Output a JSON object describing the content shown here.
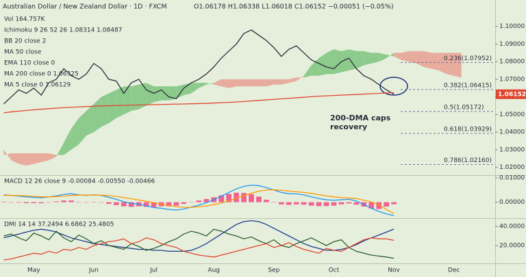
{
  "chart_data": [
    {
      "type": "line",
      "title": "Australian Dollar / New Zealand Dollar · 1D · FXCM",
      "ohlc": "O1.06178 H1.06338 L1.06018 C1.06152 −0.00051 (−0.05%)",
      "legend_lines": [
        "Vol 164.757K",
        "Ichimoku 9 26 52 26 1.08314 1.08487",
        "BB 20 close 2",
        "MA 50 close",
        "EMA 110 close 0",
        "MA 200 close 0 1.06325",
        "MA 5 close 0 1.06129"
      ],
      "ylim": [
        1.0156,
        1.1088
      ],
      "yticks": [
        {
          "value": 1.1,
          "label": "1.10000"
        },
        {
          "value": 1.09,
          "label": "1.09000"
        },
        {
          "value": 1.08,
          "label": "1.08000"
        },
        {
          "value": 1.07,
          "label": "1.07000"
        },
        {
          "value": 1.06,
          "label": "1.06000"
        },
        {
          "value": 1.05,
          "label": "1.05000"
        },
        {
          "value": 1.04,
          "label": "1.04000"
        },
        {
          "value": 1.03,
          "label": "1.03000"
        },
        {
          "value": 1.02,
          "label": "1.02000"
        }
      ],
      "series": [
        {
          "color": "#2a2e39",
          "style": "line",
          "values": [
            1.056,
            1.06,
            1.064,
            1.062,
            1.065,
            1.061,
            1.068,
            1.07,
            1.076,
            1.072,
            1.07,
            1.073,
            1.079,
            1.076,
            1.07,
            1.069,
            1.062,
            1.068,
            1.07,
            1.064,
            1.062,
            1.064,
            1.06,
            1.059,
            1.065,
            1.068,
            1.07,
            1.073,
            1.077,
            1.082,
            1.086,
            1.09,
            1.096,
            1.098,
            1.095,
            1.092,
            1.088,
            1.083,
            1.087,
            1.089,
            1.085,
            1.081,
            1.079,
            1.077,
            1.076,
            1.08,
            1.082,
            1.076,
            1.072,
            1.07,
            1.067,
            1.064,
            1.0615,
            null,
            null,
            null,
            null,
            null,
            null,
            null,
            null,
            null,
            null,
            null,
            null,
            null
          ]
        },
        {
          "color": "#e0452f",
          "style": "line",
          "values": [
            1.051,
            1.0515,
            1.0519,
            1.0523,
            1.0527,
            1.053,
            1.0533,
            1.0536,
            1.0539,
            1.0541,
            1.0543,
            1.0545,
            1.0547,
            1.0549,
            1.055,
            1.0551,
            1.0552,
            1.0553,
            1.0554,
            1.0555,
            1.0556,
            1.0557,
            1.0558,
            1.0559,
            1.056,
            1.0561,
            1.0562,
            1.0563,
            1.0565,
            1.0567,
            1.0569,
            1.0571,
            1.0574,
            1.0577,
            1.058,
            1.0583,
            1.0586,
            1.0589,
            1.0592,
            1.0595,
            1.0598,
            1.0601,
            1.0604,
            1.0606,
            1.0608,
            1.061,
            1.0612,
            1.0614,
            1.0616,
            1.0618,
            1.062,
            1.0622,
            1.0624,
            null,
            null,
            null,
            null,
            null,
            null,
            null,
            null,
            null,
            null,
            null,
            null,
            null
          ]
        }
      ],
      "cloud": {
        "up_color": "#6fbf73",
        "down_color": "#e8968a",
        "span_a": [
          1.03,
          1.024,
          1.022,
          1.021,
          1.022,
          1.023,
          1.024,
          1.026,
          1.034,
          1.042,
          1.048,
          1.052,
          1.056,
          1.06,
          1.062,
          1.064,
          1.066,
          1.066,
          1.067,
          1.068,
          1.066,
          1.066,
          1.066,
          1.066,
          1.067,
          1.068,
          1.068,
          1.068,
          1.067,
          1.066,
          1.065,
          1.066,
          1.066,
          1.066,
          1.066,
          1.066,
          1.067,
          1.067,
          1.068,
          1.069,
          1.072,
          1.078,
          1.082,
          1.085,
          1.087,
          1.086,
          1.087,
          1.086,
          1.086,
          1.085,
          1.085,
          1.084,
          1.083,
          1.081,
          1.08,
          1.079,
          1.077,
          1.076,
          1.075,
          1.073,
          1.072,
          1.071,
          null,
          null,
          null,
          null
        ],
        "span_b": [
          1.027,
          1.028,
          1.028,
          1.028,
          1.028,
          1.028,
          1.028,
          1.027,
          1.027,
          1.03,
          1.033,
          1.038,
          1.04,
          1.043,
          1.045,
          1.048,
          1.05,
          1.052,
          1.053,
          1.055,
          1.057,
          1.058,
          1.058,
          1.059,
          1.061,
          1.062,
          1.065,
          1.067,
          1.068,
          1.07,
          1.07,
          1.07,
          1.07,
          1.07,
          1.07,
          1.07,
          1.07,
          1.07,
          1.07,
          1.071,
          1.071,
          1.072,
          1.072,
          1.073,
          1.073,
          1.074,
          1.075,
          1.076,
          1.078,
          1.079,
          1.08,
          1.082,
          1.085,
          1.085,
          1.086,
          1.086,
          1.086,
          1.085,
          1.085,
          1.085,
          1.085,
          1.085,
          null,
          null,
          null,
          null
        ]
      },
      "fib_levels": [
        {
          "value": 1.07952,
          "label": "0.236(1.07952)"
        },
        {
          "value": 1.06415,
          "label": "0.382(1.06415)"
        },
        {
          "value": 1.05172,
          "label": "0.5(1.05172)"
        },
        {
          "value": 1.03929,
          "label": "0.618(1.03929)"
        },
        {
          "value": 1.0216,
          "label": "0.786(1.02160)"
        }
      ],
      "last_price": {
        "value": 1.06152,
        "label": "1.06152"
      },
      "annotation": [
        "200-DMA caps",
        "recovery"
      ]
    },
    {
      "type": "line",
      "legend_lines": [
        "MACD 12 26 close 9 -0.00084 -0.00550 -0.00466"
      ],
      "ylim": [
        -0.00657,
        0.01086
      ],
      "yticks": [
        {
          "value": 0.01,
          "label": "0.01000"
        },
        {
          "value": 0,
          "label": "0.00000"
        }
      ],
      "series": [
        {
          "color": "#f06292",
          "style": "bar",
          "values": [
            0.0002,
            0,
            -0.0002,
            -0.0004,
            -0.0004,
            -0.0004,
            0,
            0.0003,
            0.0007,
            0.0007,
            0.0001,
            -0.0001,
            0.0001,
            -0.0001,
            -0.0007,
            -0.0012,
            -0.0017,
            -0.0019,
            -0.0017,
            -0.0019,
            -0.002,
            -0.0017,
            -0.0017,
            -0.0014,
            -0.0007,
            0.0001,
            0.0007,
            0.0013,
            0.002,
            0.0028,
            0.0034,
            0.0039,
            0.0038,
            0.0033,
            0.0023,
            0.001,
            -0.0001,
            -0.0009,
            -0.0011,
            -0.0009,
            -0.001,
            -0.0014,
            -0.0016,
            -0.0016,
            -0.0014,
            -0.0009,
            -0.0005,
            -0.001,
            -0.0018,
            -0.0026,
            -0.0028,
            -0.0018,
            -0.00084,
            null,
            null,
            null,
            null,
            null,
            null,
            null,
            null,
            null,
            null,
            null,
            null,
            null
          ]
        },
        {
          "color": "#2196f3",
          "style": "line",
          "values": [
            0.003,
            0.0028,
            0.0025,
            0.0022,
            0.002,
            0.0018,
            0.0022,
            0.0026,
            0.0032,
            0.0035,
            0.003,
            0.0028,
            0.003,
            0.0028,
            0.002,
            0.0012,
            0.0002,
            -0.0005,
            -0.0008,
            -0.0015,
            -0.0022,
            -0.0025,
            -0.003,
            -0.0032,
            -0.0028,
            -0.002,
            -0.0012,
            -0.0002,
            0.001,
            0.0025,
            0.004,
            0.0055,
            0.0065,
            0.007,
            0.0068,
            0.006,
            0.005,
            0.004,
            0.0035,
            0.0034,
            0.003,
            0.0022,
            0.0015,
            0.001,
            0.0008,
            0.001,
            0.0012,
            0.0005,
            -0.001,
            -0.0025,
            -0.0038,
            -0.0048,
            -0.0055,
            null,
            null,
            null,
            null,
            null,
            null,
            null,
            null,
            null,
            null,
            null,
            null,
            null
          ]
        },
        {
          "color": "#ff9800",
          "style": "line",
          "values": [
            0.0028,
            0.0028,
            0.0027,
            0.0026,
            0.0024,
            0.0022,
            0.0022,
            0.0023,
            0.0025,
            0.0028,
            0.0029,
            0.0029,
            0.0029,
            0.0029,
            0.0027,
            0.0024,
            0.0019,
            0.0014,
            0.0009,
            0.0004,
            -0.0002,
            -0.0008,
            -0.0013,
            -0.0018,
            -0.0021,
            -0.0021,
            -0.0019,
            -0.0015,
            -0.001,
            -0.0003,
            0.0006,
            0.0016,
            0.0027,
            0.0037,
            0.0045,
            0.005,
            0.0051,
            0.0049,
            0.0046,
            0.0043,
            0.004,
            0.0036,
            0.0031,
            0.0026,
            0.0022,
            0.0019,
            0.0017,
            0.0015,
            0.0008,
            0.0001,
            -0.001,
            -0.003,
            -0.00466,
            null,
            null,
            null,
            null,
            null,
            null,
            null,
            null,
            null,
            null,
            null,
            null,
            null
          ]
        }
      ]
    },
    {
      "type": "line",
      "legend_lines": [
        "DMI 14 14 37.2494 6.6862 25.4805"
      ],
      "ylim": [
        1.43,
        47.86
      ],
      "yticks": [
        {
          "value": 40,
          "label": "40.0000"
        },
        {
          "value": 20,
          "label": "20.0000"
        }
      ],
      "categories": [
        null,
        null,
        null,
        null,
        "May",
        null,
        null,
        null,
        null,
        null,
        null,
        null,
        "Jun",
        null,
        null,
        null,
        null,
        null,
        null,
        null,
        "Jul",
        null,
        null,
        null,
        null,
        null,
        null,
        null,
        "Aug",
        null,
        null,
        null,
        null,
        null,
        null,
        null,
        "Sep",
        null,
        null,
        null,
        null,
        null,
        null,
        null,
        "Oct",
        null,
        null,
        null,
        null,
        null,
        null,
        null,
        "Nov",
        null,
        null,
        null,
        null,
        null,
        null,
        null,
        "Dec",
        null,
        null,
        null,
        null,
        null
      ],
      "series": [
        {
          "color": "#1a3a8c",
          "style": "line",
          "values": [
            28,
            30,
            32,
            34,
            36,
            37,
            36,
            34,
            31,
            28,
            26,
            24,
            22,
            21,
            20,
            19,
            18,
            17,
            16,
            16,
            15,
            15,
            14,
            14,
            14,
            15,
            18,
            22,
            27,
            32,
            37,
            42,
            45,
            46,
            45,
            42,
            38,
            34,
            30,
            26,
            22,
            19,
            17,
            15,
            15,
            16,
            18,
            21,
            25,
            28,
            31,
            34,
            37.2494,
            null,
            null,
            null,
            null,
            null,
            null,
            null,
            null,
            null,
            null,
            null,
            null,
            null
          ]
        },
        {
          "color": "#2e5e2e",
          "style": "line",
          "values": [
            30,
            32,
            28,
            25,
            33,
            30,
            26,
            35,
            28,
            24,
            31,
            27,
            22,
            25,
            20,
            18,
            16,
            22,
            19,
            15,
            17,
            20,
            24,
            27,
            32,
            35,
            33,
            30,
            37,
            35,
            32,
            30,
            27,
            29,
            25,
            22,
            26,
            20,
            18,
            22,
            25,
            28,
            24,
            20,
            24,
            26,
            18,
            14,
            12,
            10,
            9,
            8,
            6.6862,
            null,
            null,
            null,
            null,
            null,
            null,
            null,
            null,
            null,
            null,
            null,
            null,
            null
          ]
        },
        {
          "color": "#e0452f",
          "style": "line",
          "values": [
            5,
            6,
            8,
            10,
            12,
            11,
            14,
            12,
            16,
            15,
            18,
            16,
            20,
            22,
            24,
            25,
            27,
            22,
            24,
            28,
            26,
            22,
            20,
            18,
            14,
            12,
            10,
            9,
            8,
            10,
            12,
            14,
            16,
            18,
            20,
            22,
            18,
            20,
            23,
            19,
            16,
            14,
            12,
            17,
            15,
            14,
            18,
            22,
            26,
            28,
            27,
            27,
            25.4805,
            null,
            null,
            null,
            null,
            null,
            null,
            null,
            null,
            null,
            null,
            null,
            null,
            null
          ]
        }
      ]
    }
  ]
}
